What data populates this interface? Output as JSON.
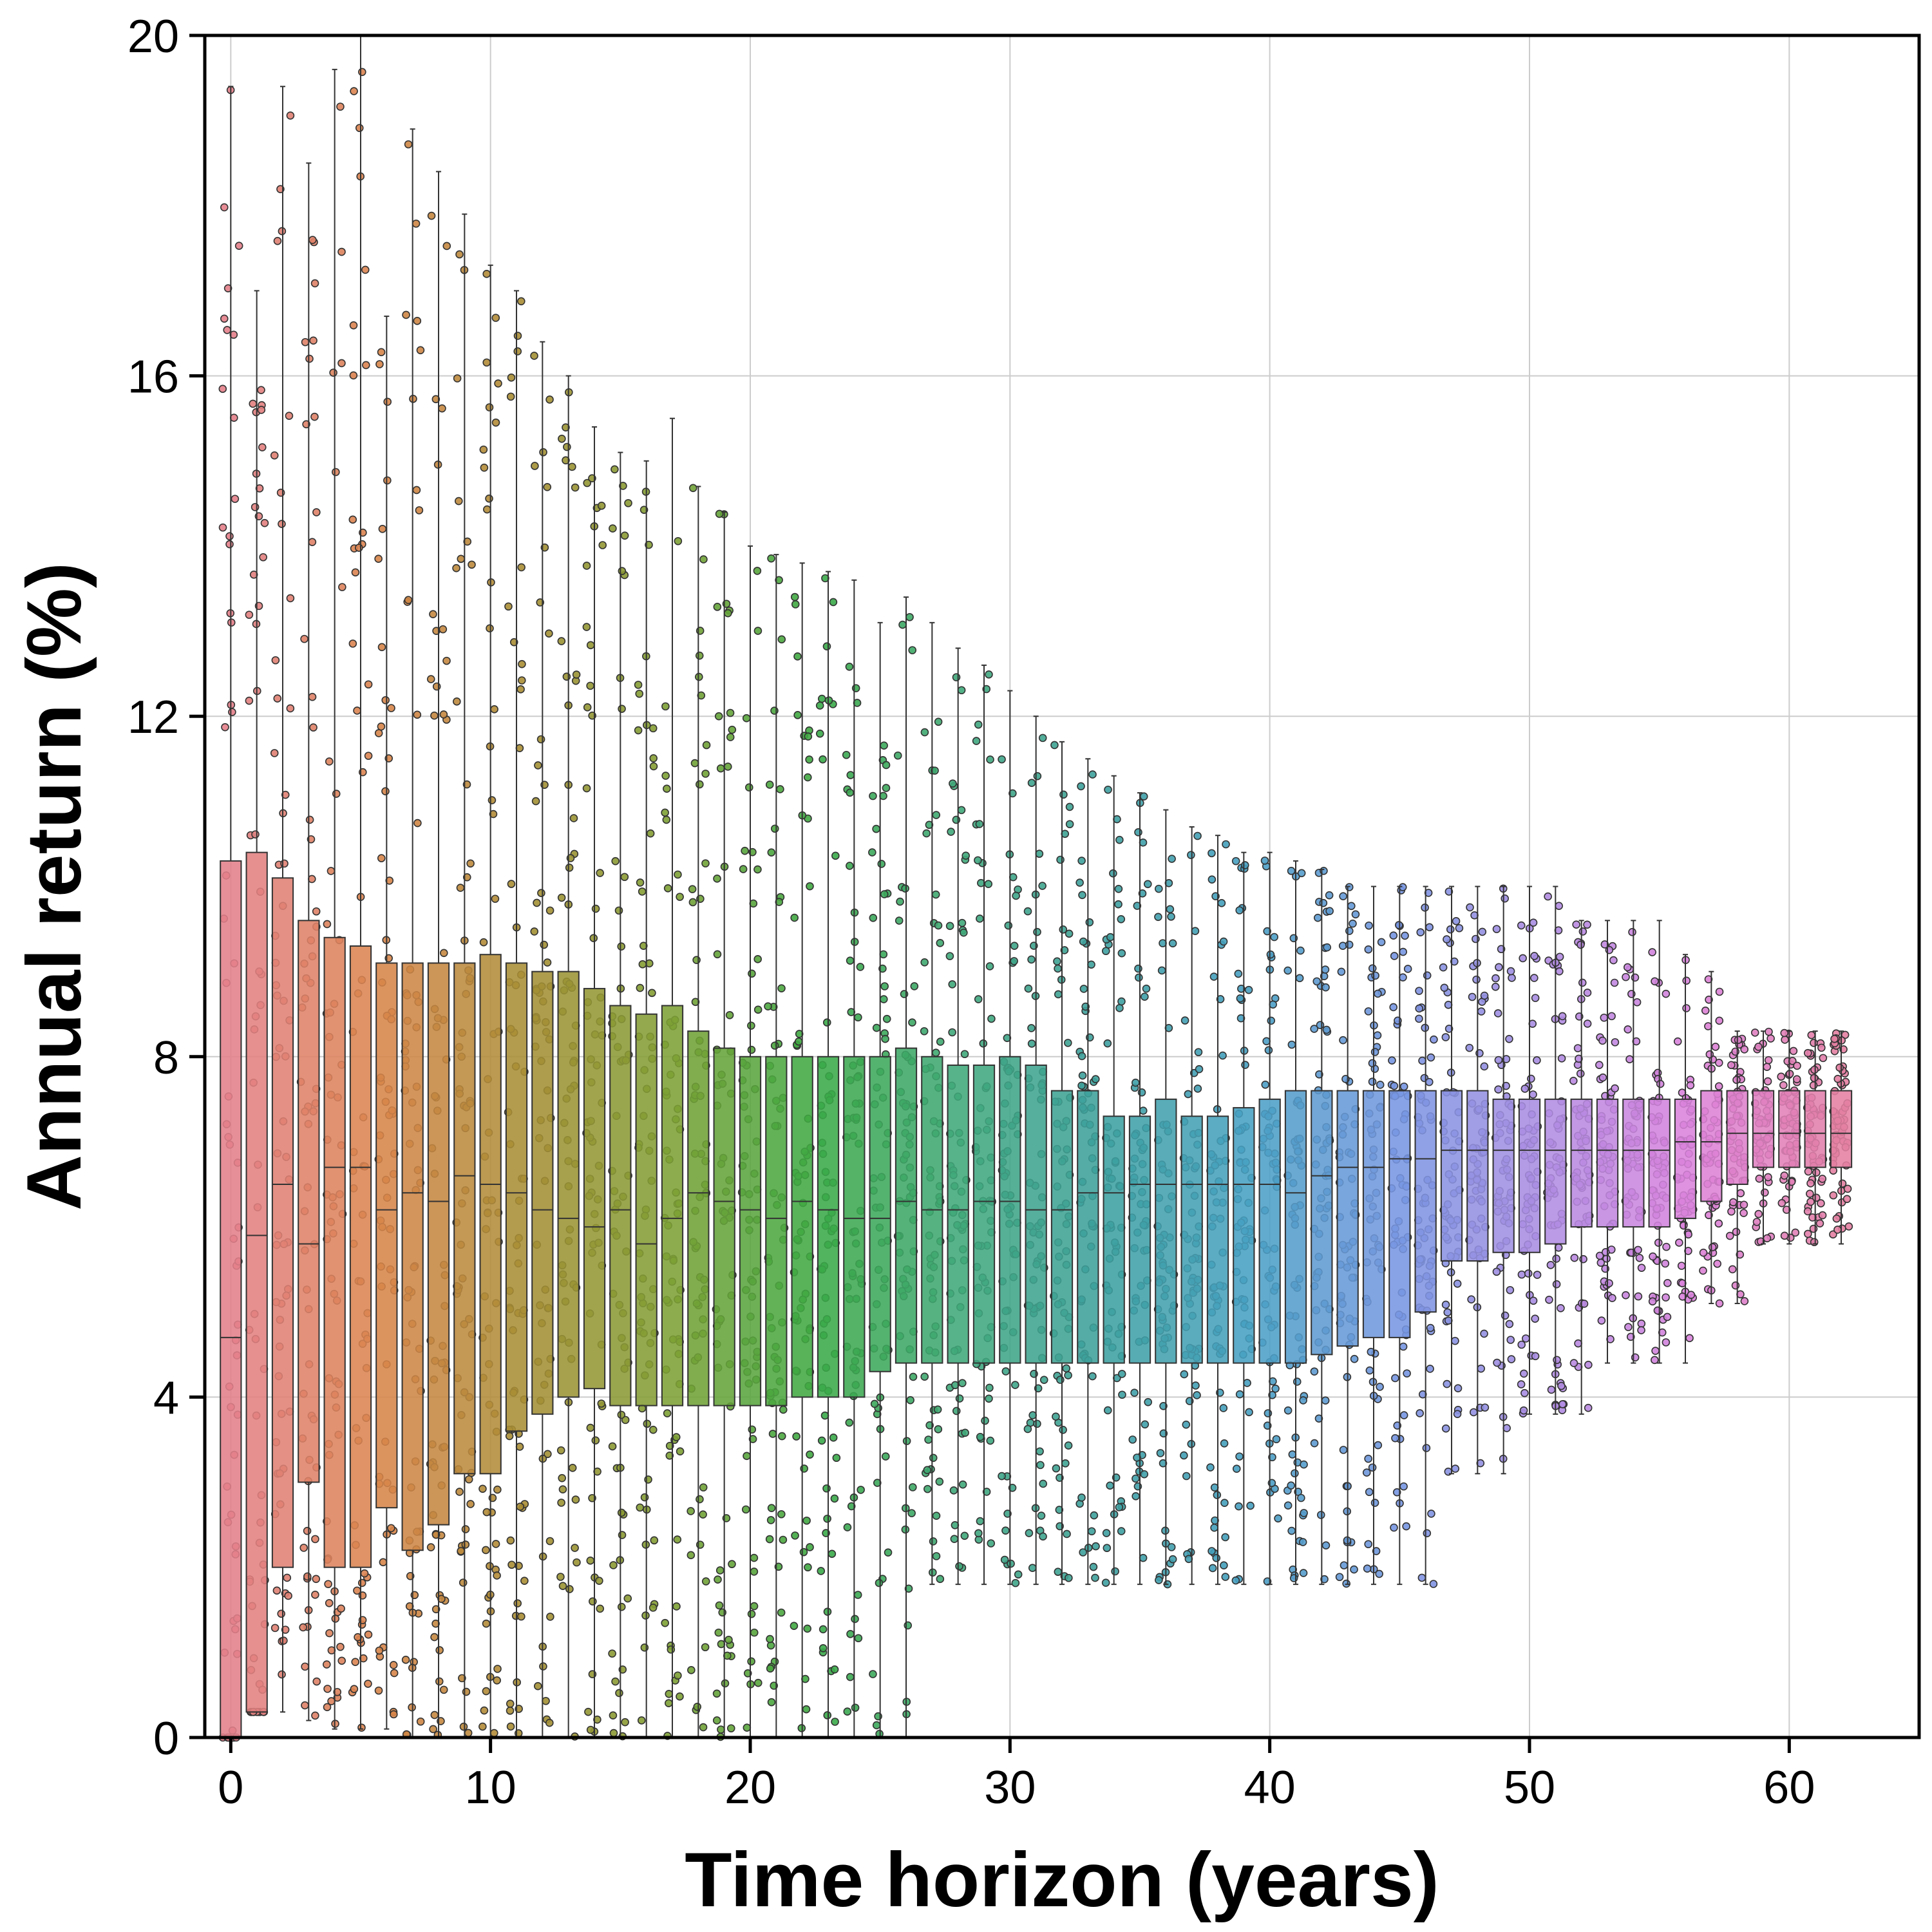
{
  "chart_data": {
    "type": "box",
    "xlabel": "Time horizon (years)",
    "ylabel": "Annual return (%)",
    "xlim": [
      -1,
      65
    ],
    "ylim": [
      0,
      20
    ],
    "xticks": [
      0,
      10,
      20,
      30,
      40,
      50,
      60
    ],
    "yticks": [
      0,
      4,
      8,
      12,
      16,
      20
    ],
    "grid": true,
    "categories": [
      0,
      1,
      2,
      3,
      4,
      5,
      6,
      7,
      8,
      9,
      10,
      11,
      12,
      13,
      14,
      15,
      16,
      17,
      18,
      19,
      20,
      21,
      22,
      23,
      24,
      25,
      26,
      27,
      28,
      29,
      30,
      31,
      32,
      33,
      34,
      35,
      36,
      37,
      38,
      39,
      40,
      41,
      42,
      43,
      44,
      45,
      46,
      47,
      48,
      49,
      50,
      51,
      52,
      53,
      54,
      55,
      56,
      57,
      58,
      59,
      60,
      61,
      62
    ],
    "boxes": {
      "q1": [
        0.0,
        0.3,
        2.0,
        3.0,
        2.0,
        2.0,
        2.7,
        2.2,
        2.5,
        3.1,
        3.1,
        3.6,
        3.8,
        4.0,
        4.1,
        3.9,
        3.9,
        3.9,
        3.9,
        3.9,
        3.9,
        3.9,
        4.0,
        4.0,
        4.0,
        4.3,
        4.4,
        4.4,
        4.4,
        4.4,
        4.4,
        4.4,
        4.4,
        4.4,
        4.4,
        4.4,
        4.4,
        4.4,
        4.4,
        4.4,
        4.4,
        4.4,
        4.5,
        4.6,
        4.7,
        4.7,
        5.0,
        5.6,
        5.6,
        5.7,
        5.7,
        5.8,
        6.0,
        6.0,
        6.0,
        6.0,
        6.1,
        6.3,
        6.5,
        6.7,
        6.7,
        6.7,
        6.7
      ],
      "median": [
        4.7,
        5.9,
        6.5,
        5.8,
        6.7,
        6.7,
        6.2,
        6.4,
        6.3,
        6.6,
        6.5,
        6.4,
        6.2,
        6.1,
        6.0,
        6.2,
        5.8,
        6.1,
        6.4,
        6.3,
        6.2,
        6.1,
        6.3,
        6.2,
        6.1,
        6.1,
        6.3,
        6.2,
        6.2,
        6.3,
        6.3,
        6.2,
        6.2,
        6.4,
        6.4,
        6.5,
        6.5,
        6.5,
        6.5,
        6.5,
        6.5,
        6.4,
        6.6,
        6.7,
        6.7,
        6.8,
        6.8,
        6.9,
        6.9,
        6.9,
        6.9,
        6.9,
        6.9,
        6.9,
        6.9,
        6.9,
        7.0,
        7.0,
        7.1,
        7.1,
        7.1,
        7.1,
        7.1
      ],
      "q3": [
        10.3,
        10.4,
        10.1,
        9.6,
        9.4,
        9.3,
        9.1,
        9.1,
        9.1,
        9.1,
        9.2,
        9.1,
        9.0,
        9.0,
        8.8,
        8.6,
        8.5,
        8.6,
        8.3,
        8.1,
        8.0,
        8.0,
        8.0,
        8.0,
        8.0,
        8.0,
        8.1,
        8.0,
        7.9,
        7.9,
        8.0,
        7.9,
        7.6,
        7.6,
        7.3,
        7.3,
        7.5,
        7.3,
        7.3,
        7.4,
        7.5,
        7.6,
        7.6,
        7.6,
        7.6,
        7.6,
        7.6,
        7.6,
        7.6,
        7.5,
        7.5,
        7.5,
        7.5,
        7.5,
        7.5,
        7.5,
        7.5,
        7.6,
        7.6,
        7.6,
        7.6,
        7.6,
        7.6
      ],
      "whisker_low": [
        0.0,
        0.3,
        0.3,
        0.2,
        0.1,
        0.1,
        0.1,
        0.0,
        0.0,
        0.0,
        0.0,
        0.0,
        0.0,
        0.0,
        0.0,
        0.0,
        0.0,
        0.0,
        0.0,
        0.0,
        0.0,
        0.0,
        0.0,
        0.0,
        0.0,
        0.0,
        0.0,
        1.8,
        1.8,
        1.8,
        1.8,
        1.8,
        1.8,
        1.8,
        1.8,
        1.8,
        1.8,
        1.8,
        1.8,
        1.8,
        1.8,
        1.8,
        1.8,
        1.8,
        1.8,
        1.8,
        1.8,
        3.1,
        3.1,
        3.1,
        3.8,
        3.8,
        3.8,
        4.4,
        4.4,
        4.4,
        4.4,
        5.1,
        5.1,
        5.8,
        5.8,
        5.8,
        5.8
      ],
      "whisker_high": [
        19.4,
        17.0,
        19.4,
        18.5,
        19.6,
        20.0,
        16.7,
        18.9,
        18.4,
        17.9,
        17.3,
        17.0,
        16.4,
        16.0,
        15.4,
        15.1,
        15.0,
        15.5,
        14.7,
        14.4,
        14.0,
        13.9,
        13.8,
        13.7,
        13.6,
        13.1,
        13.4,
        13.1,
        12.8,
        12.6,
        12.3,
        12.0,
        11.7,
        11.5,
        11.3,
        11.1,
        10.9,
        10.7,
        10.6,
        10.4,
        10.4,
        10.3,
        10.2,
        10.0,
        10.0,
        10.0,
        10.0,
        10.0,
        10.0,
        10.0,
        10.0,
        10.0,
        9.6,
        9.6,
        9.6,
        9.6,
        9.2,
        9.0,
        8.3,
        8.3,
        8.3,
        8.3,
        8.3
      ]
    }
  }
}
